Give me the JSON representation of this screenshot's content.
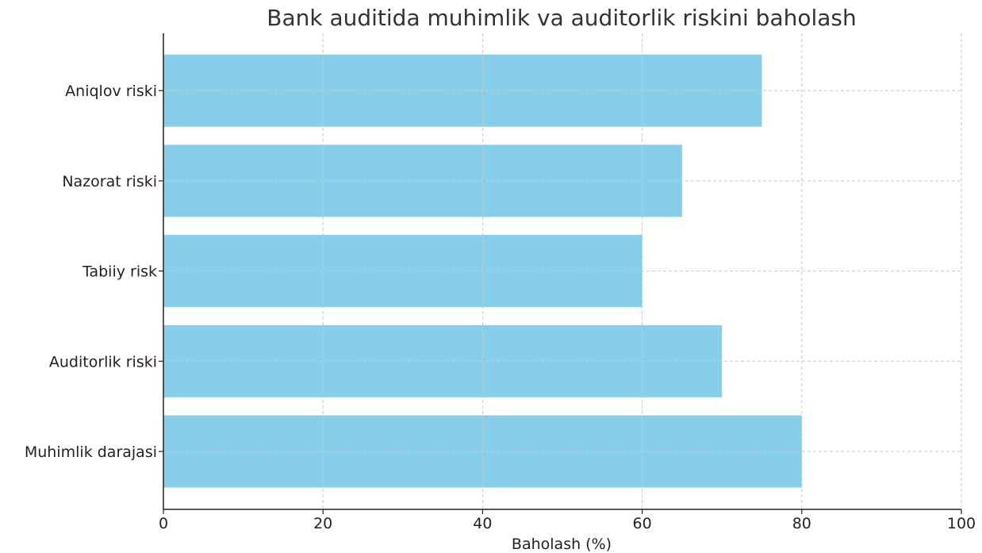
{
  "chart_data": {
    "type": "bar",
    "orientation": "horizontal",
    "title": "Bank auditida muhimlik va auditorlik riskini baholash",
    "xlabel": "Baholash (%)",
    "ylabel": "",
    "xlim": [
      0,
      100
    ],
    "xticks": [
      0,
      20,
      40,
      60,
      80,
      100
    ],
    "grid": true,
    "bar_color": "#87ceeb",
    "categories": [
      "Muhimlik darajasi",
      "Auditorlik riski",
      "Tabiiy risk",
      "Nazorat riski",
      "Aniqlov riski"
    ],
    "values": [
      80,
      70,
      60,
      65,
      75
    ]
  }
}
